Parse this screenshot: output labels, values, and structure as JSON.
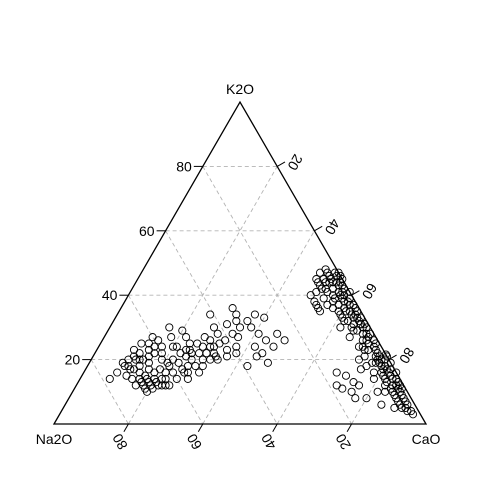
{
  "chart_data": {
    "type": "scatter",
    "subtype": "ternary",
    "title": "",
    "vertices": {
      "top": "K2O",
      "left": "Na2O",
      "right": "CaO"
    },
    "grid": true,
    "grid_values": [
      20,
      40,
      60,
      80
    ],
    "axis_ticks": {
      "k2o_left_edge": [
        "20",
        "40",
        "60",
        "80"
      ],
      "cao_right_edge": [
        "20",
        "40",
        "60",
        "80"
      ],
      "na2o_bottom_edge": [
        "80",
        "60",
        "40",
        "20"
      ]
    },
    "columns": [
      "CaO",
      "K2O",
      "Na2O"
    ],
    "points": [
      [
        53,
        46,
        1
      ],
      [
        52,
        45,
        3
      ],
      [
        55,
        43,
        2
      ],
      [
        50,
        47,
        3
      ],
      [
        54,
        42,
        4
      ],
      [
        56,
        41,
        3
      ],
      [
        51,
        44,
        5
      ],
      [
        49,
        48,
        3
      ],
      [
        53,
        44,
        3
      ],
      [
        55,
        45,
        0
      ],
      [
        52,
        42,
        6
      ],
      [
        48,
        47,
        5
      ],
      [
        57,
        40,
        3
      ],
      [
        54,
        46,
        0
      ],
      [
        50,
        45,
        5
      ],
      [
        56,
        43,
        1
      ],
      [
        53,
        41,
        6
      ],
      [
        51,
        46,
        3
      ],
      [
        49,
        44,
        7
      ],
      [
        55,
        40,
        5
      ],
      [
        52,
        47,
        1
      ],
      [
        54,
        44,
        2
      ],
      [
        50,
        43,
        7
      ],
      [
        57,
        42,
        1
      ],
      [
        53,
        47,
        0
      ],
      [
        48,
        45,
        7
      ],
      [
        56,
        39,
        5
      ],
      [
        51,
        42,
        7
      ],
      [
        55,
        44,
        1
      ],
      [
        52,
        44,
        4
      ],
      [
        56,
        38,
        6
      ],
      [
        53,
        39,
        8
      ],
      [
        50,
        41,
        9
      ],
      [
        55,
        37,
        8
      ],
      [
        49,
        40,
        11
      ],
      [
        54,
        35,
        11
      ],
      [
        52,
        37,
        11
      ],
      [
        57,
        36,
        7
      ],
      [
        51,
        38,
        11
      ],
      [
        53,
        36,
        11
      ],
      [
        58,
        39,
        3
      ],
      [
        59,
        38,
        3
      ],
      [
        60,
        36,
        4
      ],
      [
        61,
        37,
        2
      ],
      [
        62,
        35,
        3
      ],
      [
        60,
        38,
        2
      ],
      [
        63,
        34,
        3
      ],
      [
        61,
        35,
        4
      ],
      [
        62,
        37,
        1
      ],
      [
        64,
        33,
        3
      ],
      [
        60,
        34,
        6
      ],
      [
        63,
        36,
        1
      ],
      [
        61,
        33,
        6
      ],
      [
        65,
        33,
        2
      ],
      [
        62,
        32,
        6
      ],
      [
        64,
        35,
        1
      ],
      [
        59,
        35,
        6
      ],
      [
        63,
        32,
        5
      ],
      [
        65,
        31,
        4
      ],
      [
        60,
        39,
        1
      ],
      [
        66,
        32,
        2
      ],
      [
        67,
        31,
        2
      ],
      [
        66,
        33,
        1
      ],
      [
        68,
        30,
        2
      ],
      [
        67,
        29,
        4
      ],
      [
        65,
        30,
        5
      ],
      [
        69,
        28,
        3
      ],
      [
        68,
        31,
        1
      ],
      [
        66,
        29,
        5
      ],
      [
        70,
        28,
        2
      ],
      [
        70,
        26,
        4
      ],
      [
        71,
        27,
        2
      ],
      [
        72,
        25,
        3
      ],
      [
        71,
        24,
        5
      ],
      [
        73,
        26,
        1
      ],
      [
        72,
        23,
        5
      ],
      [
        74,
        24,
        2
      ],
      [
        73,
        23,
        4
      ],
      [
        75,
        23,
        2
      ],
      [
        71,
        26,
        3
      ],
      [
        76,
        21,
        3
      ],
      [
        77,
        20,
        3
      ],
      [
        76,
        22,
        2
      ],
      [
        78,
        19,
        3
      ],
      [
        77,
        21,
        2
      ],
      [
        79,
        18,
        3
      ],
      [
        78,
        20,
        2
      ],
      [
        80,
        18,
        2
      ],
      [
        76,
        19,
        5
      ],
      [
        79,
        20,
        1
      ],
      [
        81,
        17,
        2
      ],
      [
        80,
        16,
        4
      ],
      [
        82,
        16,
        2
      ],
      [
        81,
        15,
        4
      ],
      [
        83,
        15,
        2
      ],
      [
        82,
        14,
        4
      ],
      [
        84,
        14,
        2
      ],
      [
        83,
        13,
        4
      ],
      [
        80,
        17,
        3
      ],
      [
        82,
        17,
        1
      ],
      [
        85,
        12,
        3
      ],
      [
        86,
        12,
        2
      ],
      [
        85,
        11,
        4
      ],
      [
        87,
        11,
        2
      ],
      [
        86,
        10,
        4
      ],
      [
        88,
        10,
        2
      ],
      [
        87,
        9,
        4
      ],
      [
        89,
        9,
        2
      ],
      [
        88,
        8,
        4
      ],
      [
        90,
        8,
        2
      ],
      [
        89,
        7,
        4
      ],
      [
        91,
        7,
        2
      ],
      [
        90,
        6,
        4
      ],
      [
        92,
        5,
        3
      ],
      [
        91,
        5,
        4
      ],
      [
        93,
        4,
        3
      ],
      [
        94,
        4,
        2
      ],
      [
        92,
        6,
        2
      ],
      [
        95,
        3,
        2
      ],
      [
        86,
        13,
        1
      ],
      [
        80,
        22,
        -2
      ],
      [
        79,
        21,
        0
      ],
      [
        84,
        16,
        0
      ],
      [
        74,
        25,
        1
      ],
      [
        71,
        28,
        1
      ],
      [
        69,
        30,
        1
      ],
      [
        83,
        12,
        5
      ],
      [
        75,
        18,
        7
      ],
      [
        78,
        16,
        6
      ],
      [
        72,
        20,
        8
      ],
      [
        85,
        14,
        1
      ],
      [
        88,
        11,
        1
      ],
      [
        87,
        12,
        1
      ],
      [
        77,
        19,
        4
      ],
      [
        67,
        31,
        2
      ],
      [
        64,
        34,
        2
      ],
      [
        58,
        40,
        2
      ],
      [
        57,
        41,
        2
      ],
      [
        59,
        41,
        0
      ],
      [
        58,
        37,
        5
      ],
      [
        70,
        24,
        6
      ],
      [
        73,
        21,
        6
      ],
      [
        62,
        30,
        8
      ],
      [
        66,
        27,
        7
      ],
      [
        81,
        19,
        0
      ],
      [
        84,
        10,
        6
      ],
      [
        89,
        5,
        6
      ],
      [
        76,
        12,
        12
      ],
      [
        74,
        13,
        13
      ],
      [
        75,
        10,
        15
      ],
      [
        77,
        8,
        15
      ],
      [
        72,
        11,
        17
      ],
      [
        80,
        8,
        12
      ],
      [
        85,
        6,
        9
      ],
      [
        70,
        12,
        18
      ],
      [
        79,
        14,
        7
      ],
      [
        82,
        10,
        8
      ],
      [
        71,
        15,
        14
      ],
      [
        74,
        17,
        9
      ],
      [
        68,
        16,
        16
      ],
      [
        16,
        14,
        70
      ],
      [
        17,
        13,
        70
      ],
      [
        19,
        13,
        68
      ],
      [
        20,
        12,
        68
      ],
      [
        21,
        13,
        66
      ],
      [
        22,
        12,
        66
      ],
      [
        18,
        14,
        68
      ],
      [
        20,
        14,
        66
      ],
      [
        23,
        12,
        65
      ],
      [
        22,
        14,
        64
      ],
      [
        16,
        12,
        72
      ],
      [
        18,
        12,
        70
      ],
      [
        21,
        11,
        68
      ],
      [
        24,
        12,
        64
      ],
      [
        19,
        11,
        70
      ],
      [
        17,
        15,
        68
      ],
      [
        20,
        10,
        70
      ],
      [
        23,
        14,
        63
      ],
      [
        25,
        12,
        63
      ],
      [
        26,
        14,
        60
      ],
      [
        22,
        16,
        62
      ],
      [
        24,
        16,
        60
      ],
      [
        26,
        17,
        57
      ],
      [
        28,
        16,
        56
      ],
      [
        27,
        20,
        53
      ],
      [
        25,
        21,
        54
      ],
      [
        28,
        22,
        50
      ],
      [
        30,
        20,
        50
      ],
      [
        29,
        18,
        53
      ],
      [
        27,
        18,
        55
      ],
      [
        30,
        22,
        48
      ],
      [
        32,
        20,
        48
      ],
      [
        31,
        18,
        51
      ],
      [
        26,
        22,
        52
      ],
      [
        24,
        19,
        57
      ],
      [
        27,
        16,
        57
      ],
      [
        29,
        14,
        57
      ],
      [
        31,
        16,
        53
      ],
      [
        33,
        21,
        46
      ],
      [
        28,
        24,
        48
      ],
      [
        30,
        24,
        46
      ],
      [
        32,
        22,
        46
      ],
      [
        25,
        23,
        52
      ],
      [
        23,
        22,
        55
      ],
      [
        21,
        19,
        60
      ],
      [
        20,
        17,
        63
      ],
      [
        22,
        18,
        60
      ],
      [
        24,
        23,
        53
      ],
      [
        26,
        25,
        49
      ],
      [
        27,
        27,
        46
      ],
      [
        29,
        26,
        45
      ],
      [
        31,
        24,
        45
      ],
      [
        33,
        26,
        41
      ],
      [
        35,
        23,
        42
      ],
      [
        36,
        21,
        43
      ],
      [
        34,
        20,
        46
      ],
      [
        32,
        25,
        43
      ],
      [
        30,
        28,
        42
      ],
      [
        28,
        30,
        42
      ],
      [
        31,
        31,
        38
      ],
      [
        33,
        32,
        35
      ],
      [
        35,
        30,
        35
      ],
      [
        37,
        24,
        39
      ],
      [
        38,
        22,
        40
      ],
      [
        36,
        27,
        37
      ],
      [
        34,
        28,
        38
      ],
      [
        32,
        34,
        34
      ],
      [
        36,
        32,
        32
      ],
      [
        38,
        30,
        32
      ],
      [
        41,
        28,
        31
      ],
      [
        40,
        33,
        27
      ],
      [
        42,
        24,
        34
      ],
      [
        44,
        26,
        30
      ],
      [
        45,
        22,
        33
      ],
      [
        46,
        28,
        26
      ],
      [
        48,
        19,
        33
      ],
      [
        43,
        18,
        39
      ],
      [
        47,
        24,
        29
      ],
      [
        49,
        26,
        25
      ],
      [
        44,
        21,
        35
      ],
      [
        10,
        20,
        70
      ],
      [
        9,
        19,
        72
      ],
      [
        11,
        18,
        71
      ],
      [
        12,
        22,
        66
      ],
      [
        13,
        20,
        67
      ],
      [
        14,
        18,
        68
      ],
      [
        12,
        17,
        71
      ],
      [
        10,
        23,
        67
      ],
      [
        14,
        23,
        63
      ],
      [
        15,
        21,
        64
      ],
      [
        13,
        25,
        62
      ],
      [
        15,
        26,
        59
      ],
      [
        17,
        24,
        59
      ],
      [
        16,
        22,
        62
      ],
      [
        18,
        22,
        60
      ],
      [
        11,
        21,
        68
      ],
      [
        13,
        17,
        70
      ],
      [
        15,
        16,
        69
      ],
      [
        12,
        15,
        73
      ],
      [
        14,
        14,
        72
      ],
      [
        8,
        14,
        78
      ],
      [
        9,
        16,
        75
      ],
      [
        11,
        25,
        64
      ],
      [
        16,
        30,
        54
      ],
      [
        18,
        27,
        55
      ],
      [
        20,
        24,
        56
      ],
      [
        13,
        27,
        60
      ],
      [
        16,
        19,
        65
      ],
      [
        19,
        20,
        61
      ],
      [
        21,
        24,
        55
      ],
      [
        14,
        20,
        66
      ],
      [
        17,
        17,
        66
      ],
      [
        10,
        18,
        72
      ],
      [
        12,
        20,
        68
      ],
      [
        15,
        24,
        61
      ],
      [
        19,
        16,
        65
      ],
      [
        22,
        20,
        58
      ],
      [
        24,
        25,
        51
      ],
      [
        22,
        27,
        51
      ],
      [
        20,
        29,
        51
      ],
      [
        30,
        36,
        34
      ],
      [
        25,
        34,
        41
      ],
      [
        37,
        34,
        29
      ]
    ]
  }
}
